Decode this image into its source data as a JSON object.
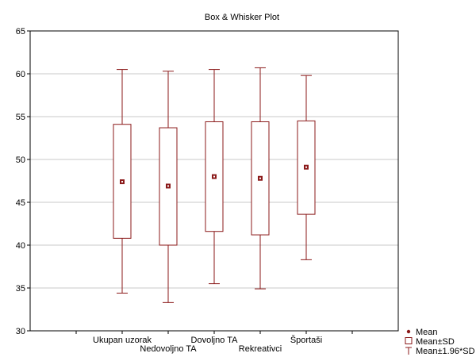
{
  "chart_data": {
    "type": "box",
    "title": "Box & Whisker Plot",
    "xlabel": "",
    "ylabel": "",
    "ylim": [
      30,
      65
    ],
    "yticks": [
      30,
      35,
      40,
      45,
      50,
      55,
      60,
      65
    ],
    "grid": true,
    "categories": [
      "Ukupan uzorak",
      "Nedovoljno TA",
      "Dovoljno TA",
      "Rekreativci",
      "Športaši"
    ],
    "label_rows": [
      0,
      1,
      0,
      1,
      0
    ],
    "series": [
      {
        "name": "Mean",
        "values": [
          47.4,
          46.9,
          48.0,
          47.8,
          49.1
        ]
      },
      {
        "name": "Mean±SD",
        "low": [
          40.8,
          40.0,
          41.6,
          41.2,
          43.6
        ],
        "high": [
          54.1,
          53.7,
          54.4,
          54.4,
          54.5
        ]
      },
      {
        "name": "Mean±1.96*SD",
        "low": [
          34.4,
          33.3,
          35.5,
          34.9,
          38.3
        ],
        "high": [
          60.5,
          60.3,
          60.5,
          60.7,
          59.8
        ]
      }
    ],
    "legend": {
      "position": "bottom-right",
      "items": [
        "Mean",
        "Mean±SD",
        "Mean±1.96*SD"
      ]
    },
    "colors": {
      "mark": "#8b1a1a",
      "grid": "#c8c8c8",
      "axis": "#000000"
    }
  }
}
